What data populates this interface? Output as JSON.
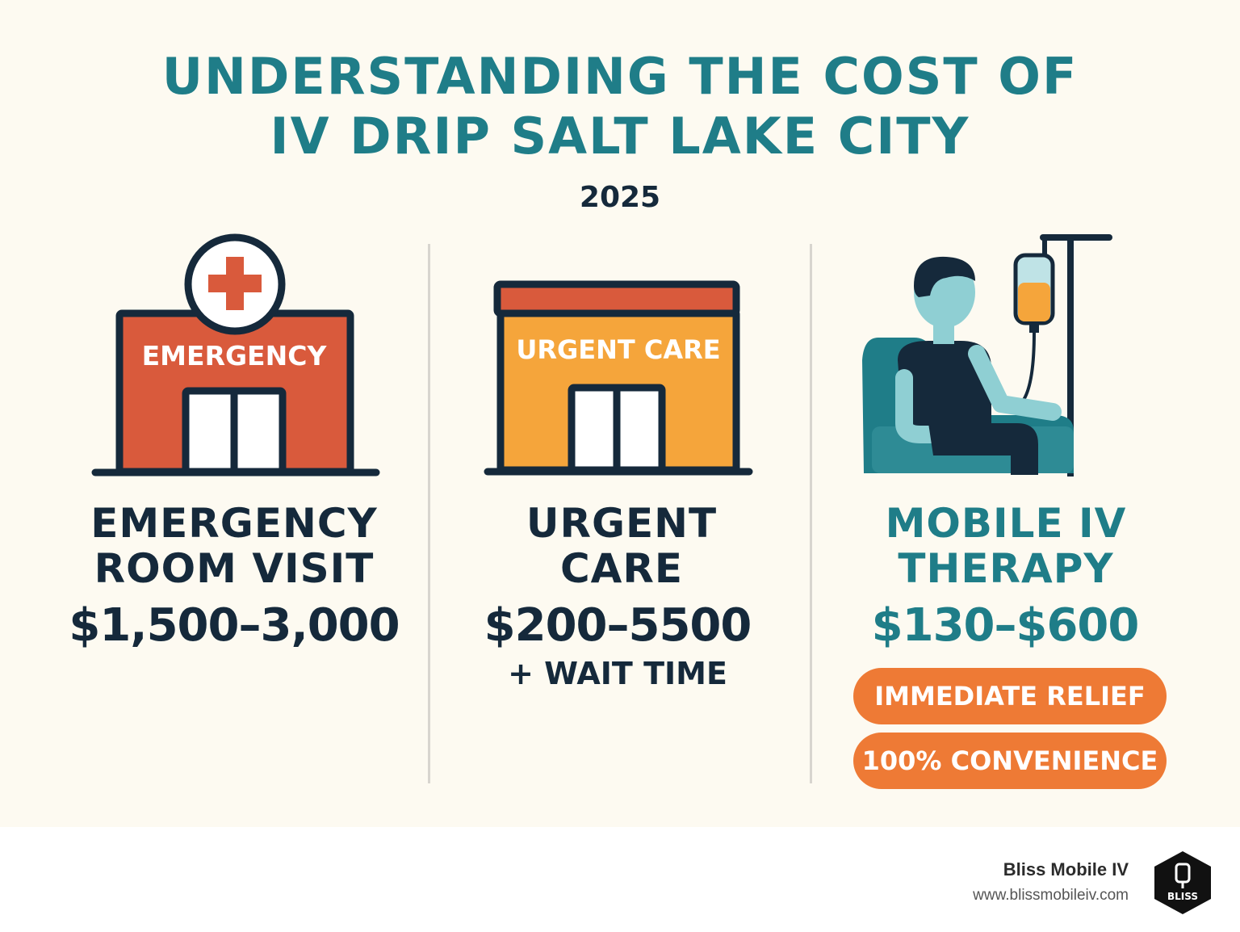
{
  "header": {
    "title_line1": "UNDERSTANDING THE COST OF",
    "title_line2": "IV DRIP SALT LAKE CITY",
    "year": "2025"
  },
  "columns": [
    {
      "icon": "emergency-hospital-icon",
      "sign": "EMERGENCY",
      "label_line1": "EMERGENCY",
      "label_line2": "ROOM VISIT",
      "price": "$1,500–3,000"
    },
    {
      "icon": "urgent-care-building-icon",
      "sign": "URGENT CARE",
      "label_line1": "URGENT",
      "label_line2": "CARE",
      "price": "$200–5500",
      "note": "+ WAIT TIME"
    },
    {
      "icon": "iv-therapy-patient-icon",
      "label_line1": "MOBILE IV",
      "label_line2": "THERAPY",
      "price": "$130–$600",
      "badges": [
        "IMMEDIATE RELIEF",
        "100% CONVENIENCE"
      ]
    }
  ],
  "footer": {
    "brand": "Bliss Mobile IV",
    "url": "www.blissmobileiv.com",
    "logo_text": "BLISS"
  },
  "colors": {
    "teal": "#1f7d88",
    "navy": "#15293b",
    "red": "#d95a3c",
    "orange": "#f5a53b",
    "badge": "#ee7a35"
  }
}
